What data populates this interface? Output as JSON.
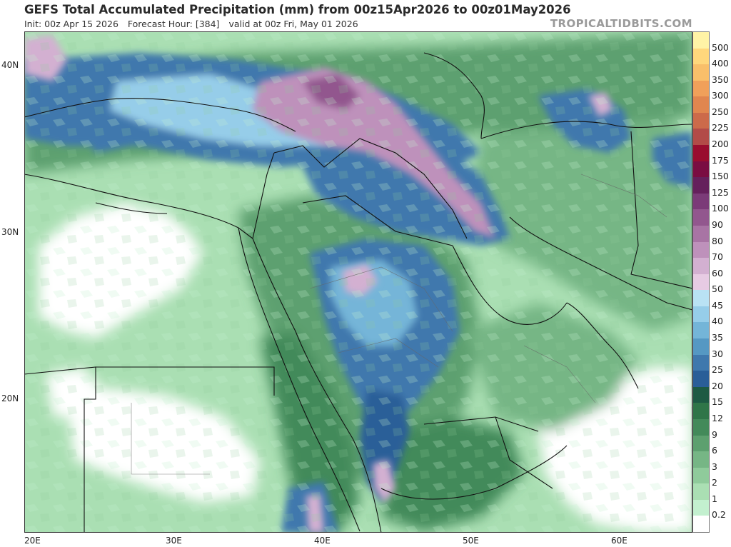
{
  "header": {
    "title": "GEFS Total Accumulated Precipitation (mm) from 00z15Apr2026 to 00z01May2026",
    "init": "Init: 00z Apr 15 2026",
    "forecast_hour": "Forecast Hour: [384]",
    "valid": "valid at 00z Fri, May 01 2026",
    "brand": "TROPICALTIDBITS.COM"
  },
  "axes": {
    "lat_labels": [
      "40N",
      "30N",
      "20N"
    ],
    "lon_labels": [
      "20E",
      "30E",
      "40E",
      "50E",
      "60E"
    ]
  },
  "colorbar": {
    "labels": [
      "500",
      "400",
      "350",
      "300",
      "250",
      "225",
      "200",
      "175",
      "150",
      "125",
      "100",
      "90",
      "80",
      "70",
      "60",
      "50",
      "45",
      "40",
      "35",
      "30",
      "25",
      "20",
      "15",
      "12",
      "9",
      "6",
      "3",
      "2",
      "1",
      "0.2"
    ],
    "colors": [
      "#fff3a6",
      "#ffd77c",
      "#f9bf6a",
      "#f0a05a",
      "#e0864f",
      "#cc6a4a",
      "#b24b48",
      "#990d2f",
      "#7a0d42",
      "#65205c",
      "#7b3b78",
      "#92578e",
      "#a874a4",
      "#be91bb",
      "#d3b0d1",
      "#e7cbe3",
      "#b9e2f4",
      "#96cde9",
      "#74b5d8",
      "#5598c3",
      "#3f78ad",
      "#2a5e98",
      "#1d5a43",
      "#2f7548",
      "#438a5a",
      "#5da06f",
      "#76b685",
      "#8fcb9b",
      "#aadfb3",
      "#c3f0cf",
      "#ffffff"
    ]
  },
  "map": {
    "variable": "Total Accumulated Precipitation",
    "units": "mm",
    "region": "Middle East / Arabian Peninsula / Northeast Africa"
  }
}
